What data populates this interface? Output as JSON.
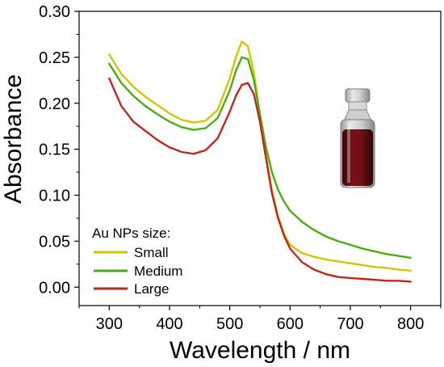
{
  "chart_data": {
    "type": "line",
    "title": "",
    "xlabel": "Wavelength / nm",
    "ylabel": "Absorbance",
    "xlim": [
      250,
      850
    ],
    "ylim": [
      -0.02,
      0.3
    ],
    "xticks": [
      300,
      400,
      500,
      600,
      700,
      800
    ],
    "yticks": [
      0.0,
      0.05,
      0.1,
      0.15,
      0.2,
      0.25,
      0.3
    ],
    "xtick_labels": [
      "300",
      "400",
      "500",
      "600",
      "700",
      "800"
    ],
    "ytick_labels": [
      "0.00",
      "0.05",
      "0.10",
      "0.15",
      "0.20",
      "0.25",
      "0.30"
    ],
    "grid": false,
    "legend": {
      "title": "Au NPs size:",
      "placement": "bottom-left"
    },
    "inset": "photo of a glass vial containing dark red gold nanoparticle solution",
    "series": [
      {
        "name": "Small",
        "color": "#d4c400",
        "x": [
          300,
          320,
          340,
          360,
          380,
          400,
          420,
          440,
          460,
          480,
          500,
          510,
          520,
          530,
          540,
          550,
          560,
          570,
          580,
          590,
          600,
          620,
          640,
          660,
          680,
          700,
          720,
          740,
          760,
          780,
          800
        ],
        "y": [
          0.253,
          0.232,
          0.218,
          0.207,
          0.198,
          0.189,
          0.182,
          0.179,
          0.181,
          0.193,
          0.227,
          0.25,
          0.267,
          0.262,
          0.233,
          0.188,
          0.143,
          0.105,
          0.077,
          0.058,
          0.046,
          0.037,
          0.033,
          0.03,
          0.028,
          0.026,
          0.024,
          0.022,
          0.021,
          0.019,
          0.018
        ]
      },
      {
        "name": "Medium",
        "color": "#4caa14",
        "x": [
          300,
          320,
          340,
          360,
          380,
          400,
          420,
          440,
          460,
          480,
          500,
          510,
          520,
          530,
          540,
          550,
          560,
          570,
          580,
          590,
          600,
          620,
          640,
          660,
          680,
          700,
          720,
          740,
          760,
          780,
          800
        ],
        "y": [
          0.243,
          0.222,
          0.208,
          0.197,
          0.188,
          0.18,
          0.174,
          0.171,
          0.173,
          0.184,
          0.214,
          0.235,
          0.25,
          0.248,
          0.225,
          0.188,
          0.152,
          0.125,
          0.106,
          0.093,
          0.083,
          0.071,
          0.062,
          0.055,
          0.05,
          0.046,
          0.042,
          0.039,
          0.036,
          0.034,
          0.032
        ]
      },
      {
        "name": "Large",
        "color": "#b82a1e",
        "x": [
          300,
          320,
          340,
          360,
          380,
          400,
          420,
          440,
          460,
          480,
          500,
          510,
          520,
          530,
          540,
          550,
          560,
          570,
          580,
          590,
          600,
          620,
          640,
          660,
          680,
          700,
          720,
          740,
          760,
          780,
          800
        ],
        "y": [
          0.227,
          0.197,
          0.18,
          0.17,
          0.16,
          0.152,
          0.147,
          0.145,
          0.149,
          0.162,
          0.191,
          0.208,
          0.22,
          0.222,
          0.21,
          0.18,
          0.14,
          0.102,
          0.075,
          0.056,
          0.042,
          0.027,
          0.019,
          0.014,
          0.011,
          0.01,
          0.009,
          0.008,
          0.007,
          0.007,
          0.006
        ]
      }
    ]
  }
}
